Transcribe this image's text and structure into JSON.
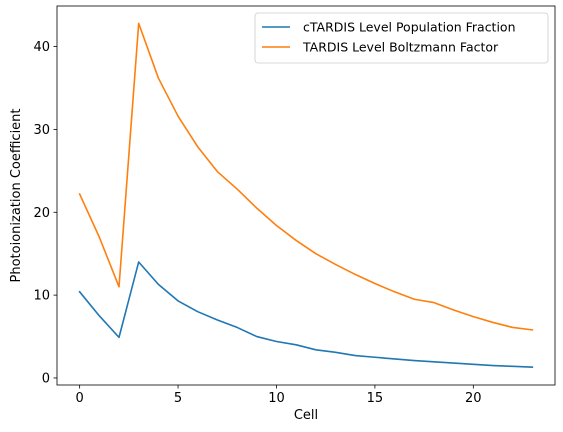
{
  "chart_data": {
    "type": "line",
    "x": [
      0,
      1,
      2,
      3,
      4,
      5,
      6,
      7,
      8,
      9,
      10,
      11,
      12,
      13,
      14,
      15,
      16,
      17,
      18,
      19,
      20,
      21,
      22,
      23
    ],
    "series": [
      {
        "name": "cTARDIS Level Population Fraction",
        "color": "#1f77b4",
        "values": [
          10.4,
          7.5,
          4.9,
          14.0,
          11.3,
          9.3,
          8.0,
          7.0,
          6.1,
          5.0,
          4.4,
          4.0,
          3.4,
          3.1,
          2.7,
          2.5,
          2.3,
          2.1,
          1.95,
          1.8,
          1.65,
          1.5,
          1.4,
          1.3
        ]
      },
      {
        "name": "TARDIS Level Boltzmann Factor",
        "color": "#ff7f0e",
        "values": [
          22.2,
          17.0,
          11.0,
          42.8,
          36.2,
          31.6,
          27.9,
          24.9,
          22.8,
          20.5,
          18.4,
          16.6,
          15.0,
          13.7,
          12.5,
          11.4,
          10.4,
          9.5,
          9.1,
          8.2,
          7.4,
          6.7,
          6.1,
          5.8
        ]
      }
    ],
    "xlabel": "Cell",
    "ylabel": "Photoionization Coefficient",
    "xlim": [
      -1.15,
      24.15
    ],
    "ylim": [
      -0.85,
      44.9
    ],
    "xticks": [
      0,
      5,
      10,
      15,
      20
    ],
    "yticks": [
      0,
      10,
      20,
      30,
      40
    ],
    "legend_position": "top-right",
    "grid": false
  }
}
